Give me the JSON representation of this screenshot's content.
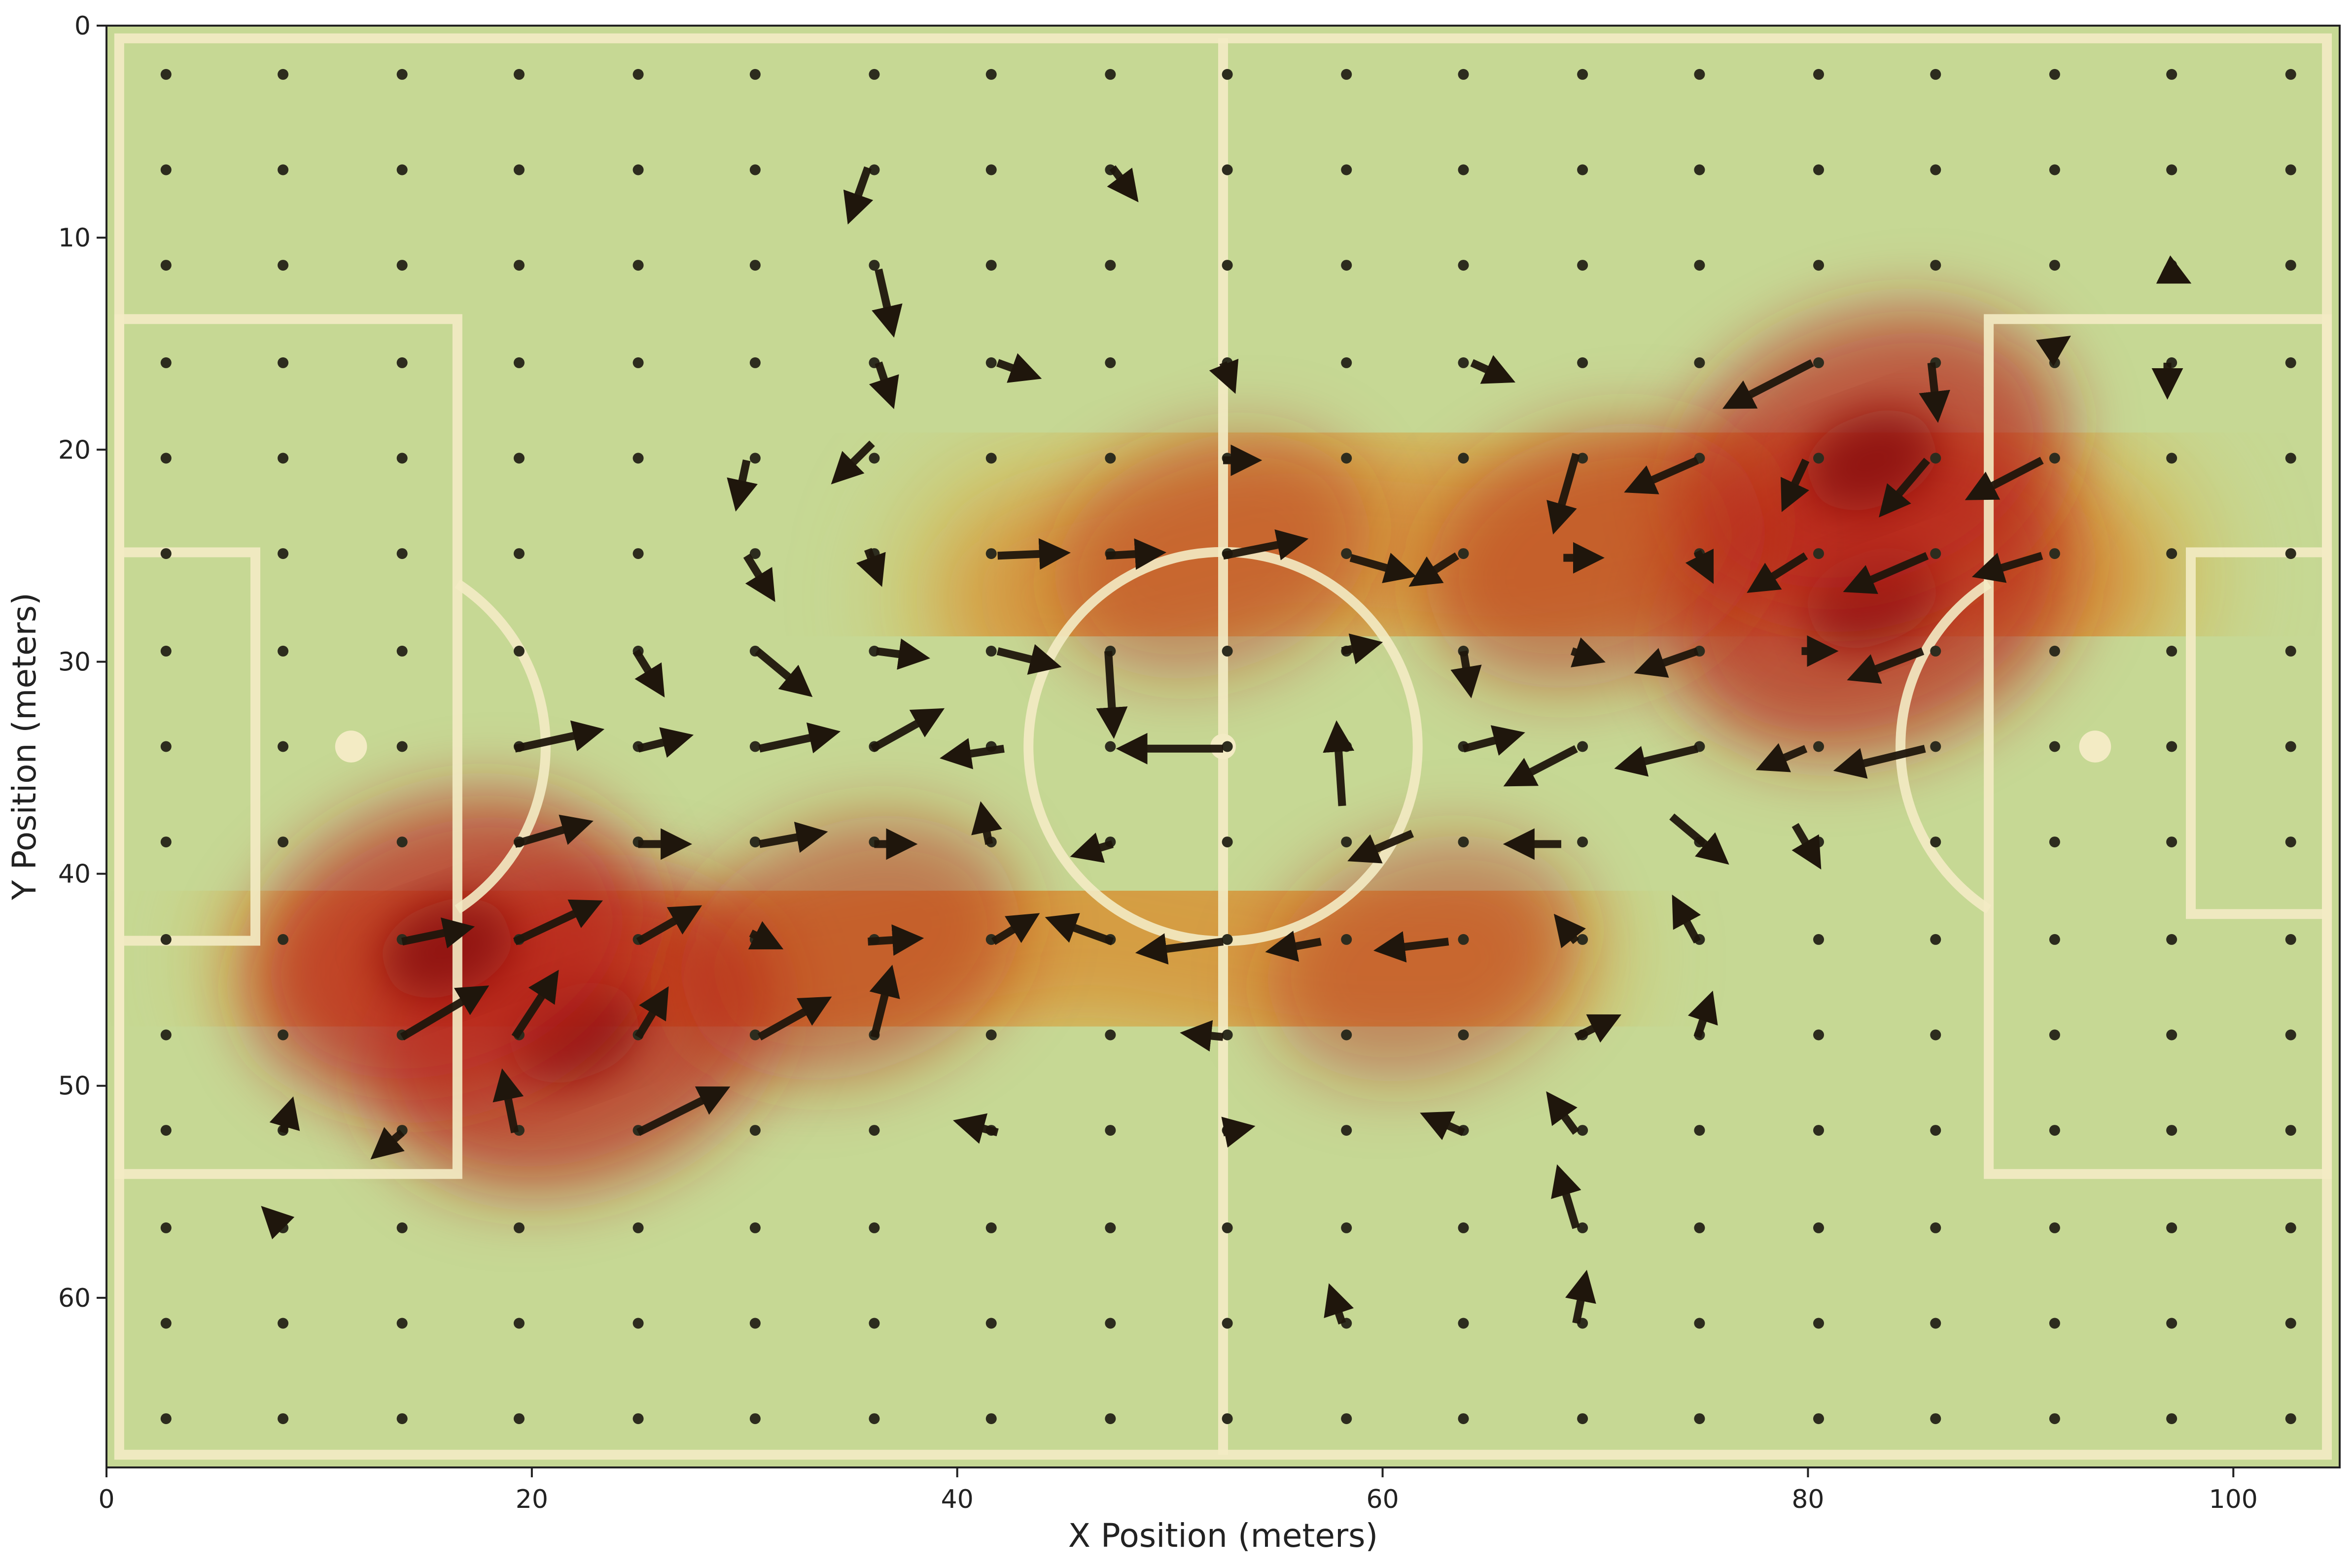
{
  "chart_data": {
    "type": "heatmap",
    "title": "",
    "xlabel": "X Position (meters)",
    "ylabel": "Y Position (meters)",
    "xlim": [
      0,
      105
    ],
    "ylim": [
      68,
      0
    ],
    "xticks": [
      0,
      20,
      40,
      60,
      80,
      100
    ],
    "yticks": [
      0,
      10,
      20,
      30,
      40,
      50,
      60
    ],
    "grid": false,
    "colors": {
      "pitch": "#c6d894",
      "lines": "#f3ebc4",
      "arrows": "#1f160c",
      "low_density": "#d6b64e",
      "mid_density": "#d9822a",
      "high_density": "#b82518",
      "peak_density": "#8a0c10"
    },
    "density_hotspots": [
      {
        "x": 22,
        "y": 47.5,
        "intensity": 1.0
      },
      {
        "x": 16,
        "y": 43.5,
        "intensity": 0.95
      },
      {
        "x": 83,
        "y": 27.0,
        "intensity": 1.0
      },
      {
        "x": 83,
        "y": 20.5,
        "intensity": 0.9
      },
      {
        "x": 35,
        "y": 43.5,
        "intensity": 0.6
      },
      {
        "x": 52,
        "y": 25.0,
        "intensity": 0.45
      },
      {
        "x": 62,
        "y": 44.0,
        "intensity": 0.45
      },
      {
        "x": 70,
        "y": 25.0,
        "intensity": 0.6
      }
    ],
    "flow_vectors": [
      {
        "x": 35.8,
        "y": 6.7,
        "dx": -0.6,
        "dy": 1.7
      },
      {
        "x": 47.3,
        "y": 6.7,
        "dx": 0.6,
        "dy": 0.8
      },
      {
        "x": 36.3,
        "y": 11.5,
        "dx": 0.5,
        "dy": 2.2
      },
      {
        "x": 96.7,
        "y": 11.5,
        "dx": 0.4,
        "dy": 0.2
      },
      {
        "x": 36.3,
        "y": 15.9,
        "dx": 0.4,
        "dy": 1.2
      },
      {
        "x": 41.9,
        "y": 15.9,
        "dx": 1.1,
        "dy": 0.4
      },
      {
        "x": 52.5,
        "y": 15.9,
        "dx": 0.2,
        "dy": 0.5
      },
      {
        "x": 64.2,
        "y": 15.9,
        "dx": 1.1,
        "dy": 0.5
      },
      {
        "x": 80.2,
        "y": 15.9,
        "dx": -3.3,
        "dy": 1.7
      },
      {
        "x": 85.8,
        "y": 15.9,
        "dx": 0.2,
        "dy": 1.8
      },
      {
        "x": 91.2,
        "y": 15.4,
        "dx": 0.3,
        "dy": -0.2
      },
      {
        "x": 96.9,
        "y": 15.9,
        "dx": 0.0,
        "dy": 0.7
      },
      {
        "x": 30.1,
        "y": 20.5,
        "dx": -0.3,
        "dy": 1.4
      },
      {
        "x": 36.0,
        "y": 19.7,
        "dx": -1.2,
        "dy": 1.2
      },
      {
        "x": 52.5,
        "y": 20.5,
        "dx": 0.8,
        "dy": 0.0
      },
      {
        "x": 69.1,
        "y": 20.2,
        "dx": -0.8,
        "dy": 2.8
      },
      {
        "x": 74.8,
        "y": 20.5,
        "dx": -2.5,
        "dy": 1.1
      },
      {
        "x": 79.9,
        "y": 20.5,
        "dx": -0.7,
        "dy": 1.5
      },
      {
        "x": 85.6,
        "y": 20.5,
        "dx": -1.6,
        "dy": 1.9
      },
      {
        "x": 91.0,
        "y": 20.5,
        "dx": -2.7,
        "dy": 1.4
      },
      {
        "x": 30.1,
        "y": 25.0,
        "dx": 0.8,
        "dy": 1.3
      },
      {
        "x": 35.8,
        "y": 24.7,
        "dx": 0.3,
        "dy": 0.8
      },
      {
        "x": 41.9,
        "y": 25.0,
        "dx": 2.4,
        "dy": -0.1
      },
      {
        "x": 47.0,
        "y": 25.0,
        "dx": 1.8,
        "dy": -0.1
      },
      {
        "x": 52.5,
        "y": 25.0,
        "dx": 3.0,
        "dy": -0.6
      },
      {
        "x": 58.5,
        "y": 25.1,
        "dx": 2.1,
        "dy": 0.6
      },
      {
        "x": 63.5,
        "y": 25.0,
        "dx": -1.4,
        "dy": 0.9
      },
      {
        "x": 68.5,
        "y": 25.1,
        "dx": 0.9,
        "dy": 0.0
      },
      {
        "x": 74.8,
        "y": 24.8,
        "dx": 0.3,
        "dy": 0.6
      },
      {
        "x": 79.9,
        "y": 25.0,
        "dx": -1.9,
        "dy": 1.2
      },
      {
        "x": 85.6,
        "y": 25.0,
        "dx": -3.0,
        "dy": 1.3
      },
      {
        "x": 91.0,
        "y": 25.0,
        "dx": -2.3,
        "dy": 0.7
      },
      {
        "x": 24.9,
        "y": 29.5,
        "dx": 0.8,
        "dy": 1.3
      },
      {
        "x": 30.6,
        "y": 29.5,
        "dx": 1.8,
        "dy": 1.5
      },
      {
        "x": 36.2,
        "y": 29.5,
        "dx": 1.5,
        "dy": 0.2
      },
      {
        "x": 41.9,
        "y": 29.5,
        "dx": 2.0,
        "dy": 0.5
      },
      {
        "x": 58.1,
        "y": 29.5,
        "dx": 0.9,
        "dy": -0.2
      },
      {
        "x": 63.8,
        "y": 29.5,
        "dx": 0.2,
        "dy": 1.2
      },
      {
        "x": 68.9,
        "y": 29.5,
        "dx": 0.6,
        "dy": 0.2
      },
      {
        "x": 74.8,
        "y": 29.5,
        "dx": -2.0,
        "dy": 0.7
      },
      {
        "x": 79.7,
        "y": 29.5,
        "dx": 0.7,
        "dy": 0.0
      },
      {
        "x": 85.4,
        "y": 29.5,
        "dx": -2.6,
        "dy": 1.0
      },
      {
        "x": 19.2,
        "y": 34.1,
        "dx": 3.2,
        "dy": -0.7
      },
      {
        "x": 25.0,
        "y": 34.1,
        "dx": 1.6,
        "dy": -0.4
      },
      {
        "x": 30.7,
        "y": 34.1,
        "dx": 2.8,
        "dy": -0.6
      },
      {
        "x": 36.0,
        "y": 34.1,
        "dx": 2.5,
        "dy": -1.4
      },
      {
        "x": 42.2,
        "y": 34.1,
        "dx": -2.0,
        "dy": 0.3
      },
      {
        "x": 47.1,
        "y": 29.5,
        "dx": 0.2,
        "dy": 3.1
      },
      {
        "x": 52.5,
        "y": 34.1,
        "dx": -4.0,
        "dy": 0.0
      },
      {
        "x": 58.1,
        "y": 36.8,
        "dx": -0.2,
        "dy": -3.0
      },
      {
        "x": 63.8,
        "y": 34.1,
        "dx": 1.9,
        "dy": -0.5
      },
      {
        "x": 69.1,
        "y": 34.1,
        "dx": -2.5,
        "dy": 1.3
      },
      {
        "x": 74.8,
        "y": 34.1,
        "dx": -2.9,
        "dy": 0.7
      },
      {
        "x": 79.9,
        "y": 34.1,
        "dx": -1.4,
        "dy": 0.6
      },
      {
        "x": 85.5,
        "y": 34.1,
        "dx": -3.3,
        "dy": 0.8
      },
      {
        "x": 19.2,
        "y": 38.6,
        "dx": 2.7,
        "dy": -0.8
      },
      {
        "x": 25.0,
        "y": 38.6,
        "dx": 1.5,
        "dy": 0.0
      },
      {
        "x": 30.7,
        "y": 38.6,
        "dx": 2.2,
        "dy": -0.4
      },
      {
        "x": 36.1,
        "y": 38.6,
        "dx": 1.0,
        "dy": 0.0
      },
      {
        "x": 41.5,
        "y": 38.6,
        "dx": -0.2,
        "dy": -1.0
      },
      {
        "x": 47.3,
        "y": 38.6,
        "dx": -1.0,
        "dy": 0.3
      },
      {
        "x": 61.4,
        "y": 38.1,
        "dx": -2.1,
        "dy": 0.9
      },
      {
        "x": 68.4,
        "y": 38.6,
        "dx": -1.7,
        "dy": 0.0
      },
      {
        "x": 73.6,
        "y": 37.3,
        "dx": 1.9,
        "dy": 1.6
      },
      {
        "x": 79.4,
        "y": 37.7,
        "dx": 0.7,
        "dy": 1.2
      },
      {
        "x": 13.9,
        "y": 43.2,
        "dx": 2.4,
        "dy": -0.5
      },
      {
        "x": 19.2,
        "y": 43.2,
        "dx": 3.2,
        "dy": -1.5
      },
      {
        "x": 25.0,
        "y": 43.2,
        "dx": 2.1,
        "dy": -1.2
      },
      {
        "x": 30.3,
        "y": 42.8,
        "dx": 0.6,
        "dy": 0.3
      },
      {
        "x": 35.8,
        "y": 43.2,
        "dx": 1.6,
        "dy": -0.1
      },
      {
        "x": 41.7,
        "y": 43.2,
        "dx": 1.3,
        "dy": -0.8
      },
      {
        "x": 47.3,
        "y": 43.2,
        "dx": -2.2,
        "dy": -0.8
      },
      {
        "x": 52.5,
        "y": 43.2,
        "dx": -3.1,
        "dy": 0.4
      },
      {
        "x": 57.1,
        "y": 43.2,
        "dx": -1.6,
        "dy": 0.3
      },
      {
        "x": 63.1,
        "y": 43.2,
        "dx": -2.5,
        "dy": 0.3
      },
      {
        "x": 69.1,
        "y": 43.2,
        "dx": -0.4,
        "dy": -0.5
      },
      {
        "x": 74.8,
        "y": 43.2,
        "dx": -0.7,
        "dy": -1.3
      },
      {
        "x": 13.9,
        "y": 47.7,
        "dx": 3.2,
        "dy": -1.9
      },
      {
        "x": 19.2,
        "y": 47.7,
        "dx": 1.5,
        "dy": -2.3
      },
      {
        "x": 25.0,
        "y": 47.7,
        "dx": 0.9,
        "dy": -1.5
      },
      {
        "x": 30.7,
        "y": 47.7,
        "dx": 2.5,
        "dy": -1.4
      },
      {
        "x": 36.1,
        "y": 47.7,
        "dx": 0.6,
        "dy": -2.4
      },
      {
        "x": 52.5,
        "y": 47.7,
        "dx": -1.0,
        "dy": -0.1
      },
      {
        "x": 69.1,
        "y": 47.7,
        "dx": 1.2,
        "dy": -0.6
      },
      {
        "x": 74.8,
        "y": 47.7,
        "dx": 0.4,
        "dy": -1.2
      },
      {
        "x": 8.3,
        "y": 52.2,
        "dx": 0.2,
        "dy": -0.7
      },
      {
        "x": 13.9,
        "y": 52.2,
        "dx": -0.7,
        "dy": 0.6
      },
      {
        "x": 19.2,
        "y": 52.2,
        "dx": -0.4,
        "dy": -2.0
      },
      {
        "x": 25.0,
        "y": 52.2,
        "dx": 3.4,
        "dy": -1.7
      },
      {
        "x": 41.9,
        "y": 52.2,
        "dx": -1.1,
        "dy": -0.3
      },
      {
        "x": 52.5,
        "y": 52.2,
        "dx": 0.5,
        "dy": -0.1
      },
      {
        "x": 63.8,
        "y": 52.2,
        "dx": -1.1,
        "dy": -0.5
      },
      {
        "x": 69.1,
        "y": 52.2,
        "dx": -0.8,
        "dy": -1.1
      },
      {
        "x": 8.3,
        "y": 56.7,
        "dx": -0.3,
        "dy": -0.3
      },
      {
        "x": 69.1,
        "y": 56.7,
        "dx": -0.6,
        "dy": -2.0
      },
      {
        "x": 58.1,
        "y": 61.2,
        "dx": -0.3,
        "dy": -0.9
      },
      {
        "x": 69.1,
        "y": 61.2,
        "dx": 0.3,
        "dy": -1.5
      }
    ]
  }
}
